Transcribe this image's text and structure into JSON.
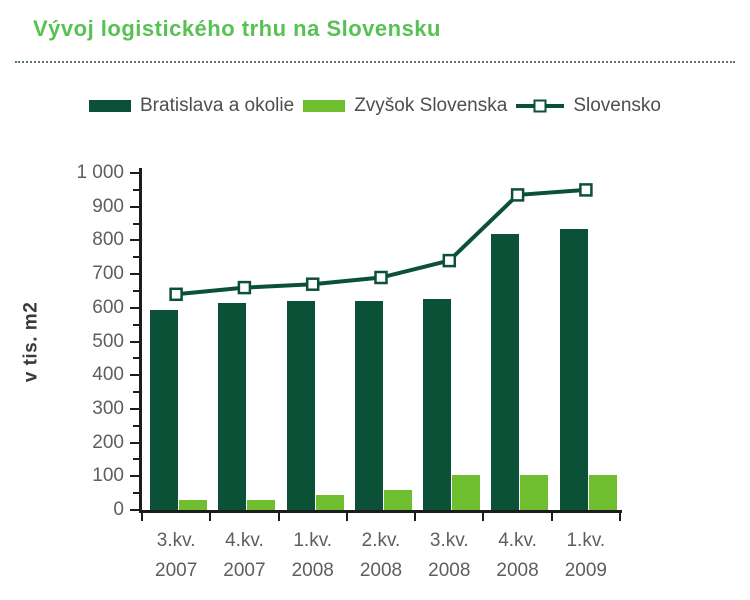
{
  "title": "Vývoj logistického trhu na Slovensku",
  "legend": {
    "items": [
      {
        "label": "Bratislava a okolie",
        "swatch": "filled-bar",
        "color": "#0b5138"
      },
      {
        "label": "Zvyšok Slovenska",
        "swatch": "filled-bar",
        "color": "#6ebe2f"
      },
      {
        "label": "Slovensko",
        "swatch": "line-open-square",
        "color": "#0b5138"
      }
    ]
  },
  "colors": {
    "title_green": "#57c153",
    "dark_green": "#0b5138",
    "light_green": "#6ebe2f",
    "axis": "#1c1c1c",
    "tick_text": "#5e5e5e",
    "legend_text": "#4e4e4e"
  },
  "chart_data": {
    "type": "bar",
    "subtype": "grouped bars with overlaid line",
    "title": "Vývoj logistického trhu na Slovensku",
    "ylabel": "v tis. m2",
    "xlabel": "",
    "ylim": [
      0,
      1000
    ],
    "ytick_major": 100,
    "ytick_minor": 50,
    "grid": false,
    "legend_position": "top",
    "categories_line1": [
      "3.kv.",
      "4.kv.",
      "1.kv.",
      "2.kv.",
      "3.kv.",
      "4.kv.",
      "1.kv."
    ],
    "categories_line2": [
      "2007",
      "2007",
      "2008",
      "2008",
      "2008",
      "2008",
      "2009"
    ],
    "categories": [
      "3.kv. 2007",
      "4.kv. 2007",
      "1.kv. 2008",
      "2.kv. 2008",
      "3.kv. 2008",
      "4.kv. 2008",
      "1.kv. 2009"
    ],
    "series": [
      {
        "name": "Bratislava a okolie",
        "type": "bar",
        "color": "#0b5138",
        "values": [
          595,
          615,
          620,
          620,
          625,
          820,
          835
        ]
      },
      {
        "name": "Zvyšok Slovenska",
        "type": "bar",
        "color": "#6ebe2f",
        "values": [
          30,
          30,
          45,
          60,
          105,
          105,
          105
        ]
      },
      {
        "name": "Slovensko",
        "type": "line",
        "color": "#0b5138",
        "marker": "open-square",
        "values": [
          640,
          660,
          670,
          690,
          740,
          935,
          950
        ]
      }
    ]
  }
}
